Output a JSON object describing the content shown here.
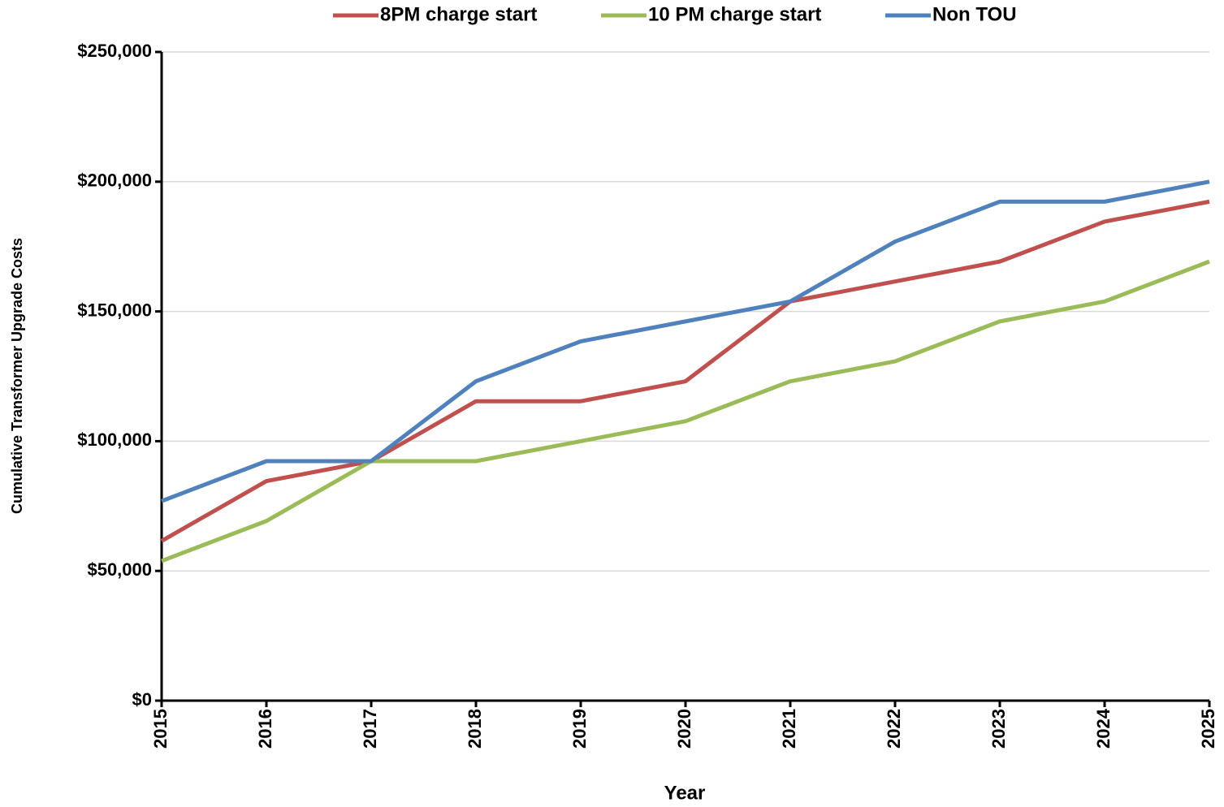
{
  "chart_data": {
    "type": "line",
    "x_label": "Year",
    "y_label": "Cumulative Transformer Upgrade Costs",
    "x": [
      2015,
      2016,
      2017,
      2018,
      2019,
      2020,
      2021,
      2022,
      2023,
      2024,
      2025
    ],
    "xlim": [
      2015,
      2025
    ],
    "xticks": [
      2015,
      2016,
      2017,
      2018,
      2019,
      2020,
      2021,
      2022,
      2023,
      2024,
      2025
    ],
    "ylim": [
      0,
      250000
    ],
    "yticks": [
      {
        "value": 0,
        "label": "$0"
      },
      {
        "value": 50000,
        "label": "$50,000"
      },
      {
        "value": 100000,
        "label": "$100,000"
      },
      {
        "value": 150000,
        "label": "$150,000"
      },
      {
        "value": 200000,
        "label": "$200,000"
      },
      {
        "value": 250000,
        "label": "$250,000"
      }
    ],
    "grid": true,
    "legend": "top",
    "series": [
      {
        "name": "8PM charge start",
        "color": "#c0504d",
        "values": [
          61538,
          84615,
          92308,
          115385,
          115385,
          123077,
          153846,
          161538,
          169231,
          184615,
          192308
        ]
      },
      {
        "name": "10 PM charge start",
        "color": "#9bbb59",
        "values": [
          53846,
          69231,
          92308,
          92308,
          100000,
          107692,
          123077,
          130769,
          146154,
          153846,
          169231
        ]
      },
      {
        "name": "Non TOU",
        "color": "#4f81bd",
        "values": [
          76923,
          92308,
          92308,
          123077,
          138462,
          146154,
          153846,
          176923,
          192308,
          192308,
          200000
        ]
      }
    ]
  }
}
